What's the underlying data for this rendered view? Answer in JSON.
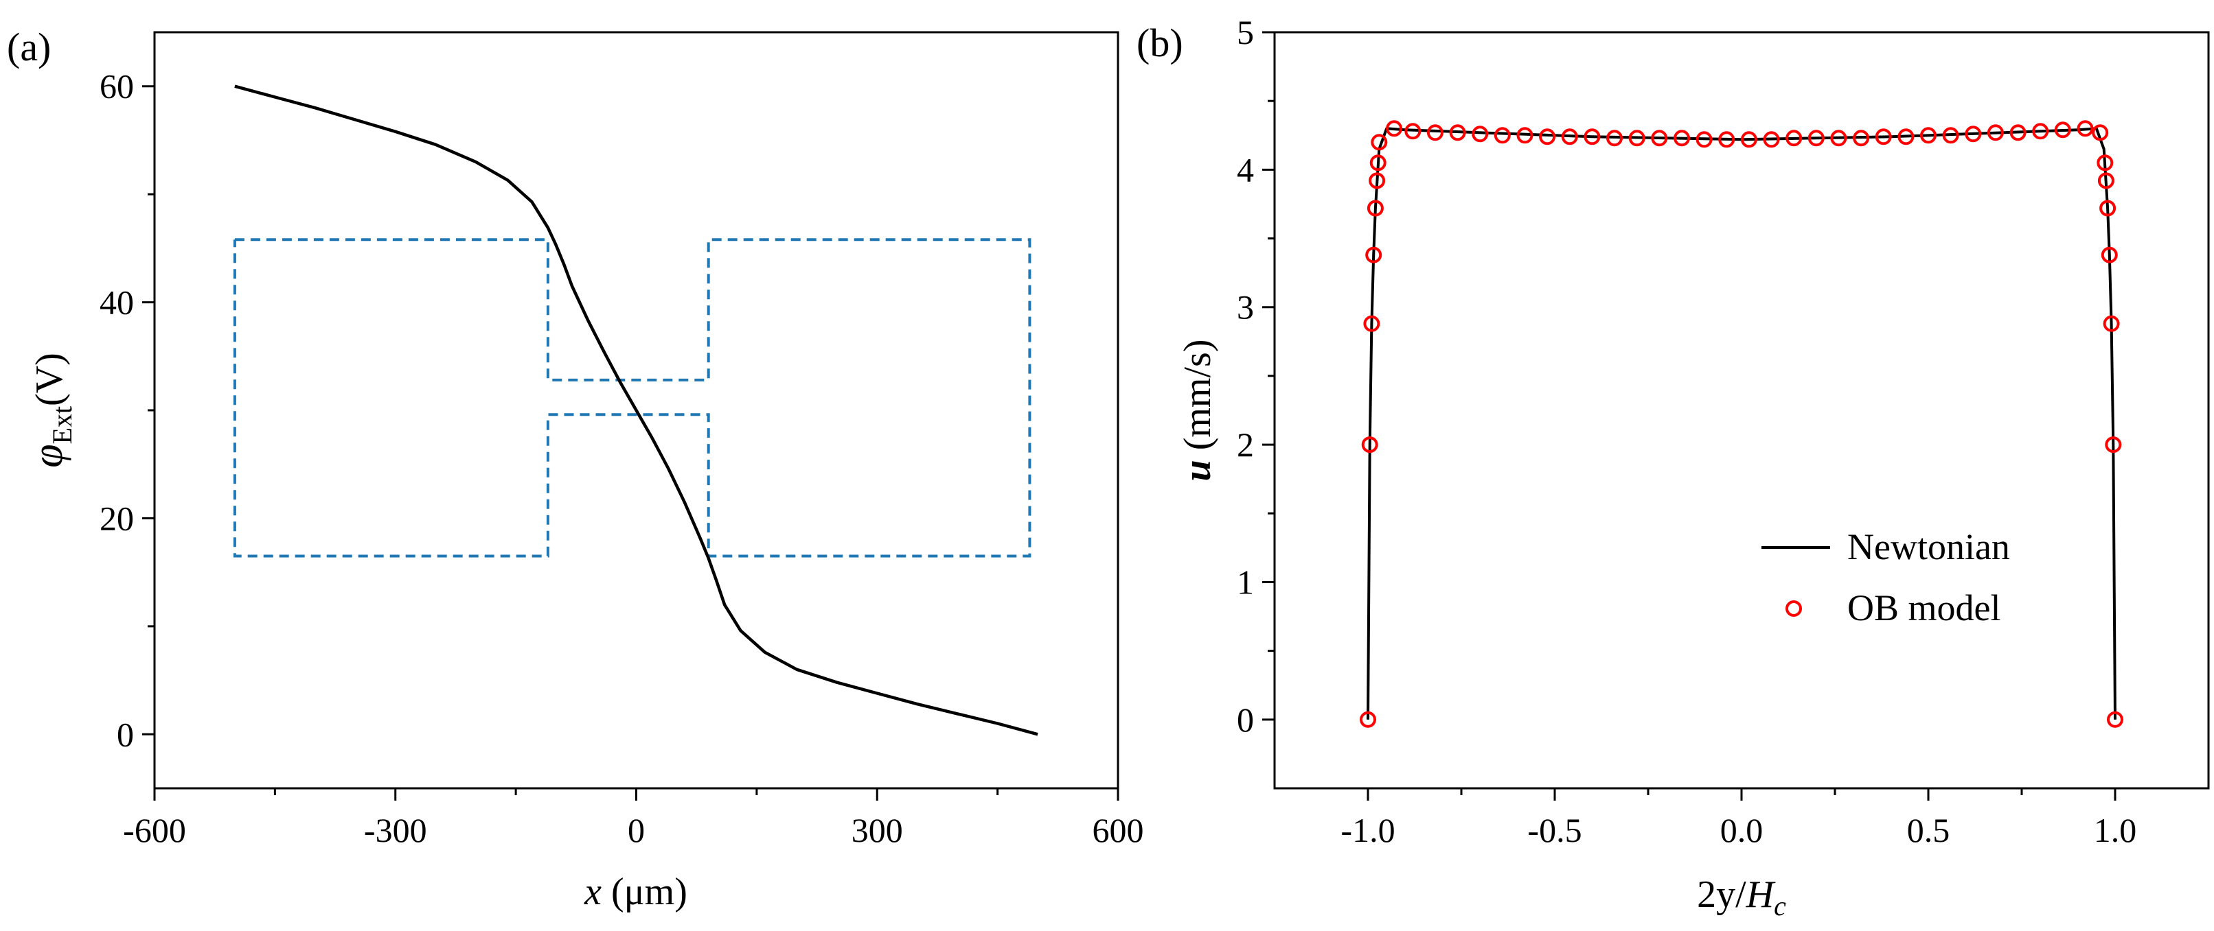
{
  "figure_labels": {
    "a": "(a)",
    "b": "(b)"
  },
  "chart_data": [
    {
      "type": "line",
      "panel": "(a)",
      "xlabel_italic": "x",
      "xlabel_rest": " (μm)",
      "ylabel_symbol": "φ",
      "ylabel_sub": "Ext",
      "ylabel_rest": "(V)",
      "xlim": [
        -600,
        600
      ],
      "ylim": [
        -5,
        65
      ],
      "xticks": [
        -600,
        -300,
        0,
        300,
        600
      ],
      "xtick_labels": [
        "-600",
        "-300",
        "0",
        "300",
        "600"
      ],
      "yticks": [
        0,
        20,
        40,
        60
      ],
      "ytick_labels": [
        "0",
        "20",
        "40",
        "60"
      ],
      "series": [
        {
          "name": "potential",
          "color": "#000000",
          "x": [
            -500,
            -450,
            -400,
            -350,
            -300,
            -250,
            -200,
            -160,
            -130,
            -110,
            -100,
            -90,
            -80,
            -60,
            -40,
            -20,
            0,
            20,
            40,
            60,
            80,
            90,
            100,
            110,
            130,
            160,
            200,
            250,
            300,
            350,
            400,
            450,
            500
          ],
          "y": [
            60.0,
            59.0,
            58.0,
            56.9,
            55.8,
            54.6,
            53.0,
            51.3,
            49.3,
            46.9,
            45.3,
            43.5,
            41.5,
            38.3,
            35.4,
            32.6,
            30.0,
            27.4,
            24.6,
            21.5,
            18.1,
            16.3,
            14.2,
            12.0,
            9.6,
            7.6,
            6.0,
            4.8,
            3.8,
            2.8,
            1.9,
            1.0,
            0.0
          ]
        }
      ],
      "outline": {
        "color": "#1f77b4",
        "x": [
          -500,
          -110,
          -110,
          90,
          90,
          490,
          490,
          90,
          90,
          -110,
          -110,
          -500,
          -500
        ],
        "y": [
          45.8,
          45.8,
          32.8,
          32.8,
          45.8,
          45.8,
          16.5,
          16.5,
          29.6,
          29.6,
          16.5,
          16.5,
          45.8
        ]
      }
    },
    {
      "type": "line+scatter",
      "panel": "(b)",
      "xlabel_rest": "2y/",
      "xlabel_italic": "H",
      "xlabel_sub": "c",
      "ylabel_italic": "u",
      "ylabel_rest": " (mm/s)",
      "xlim": [
        -1.25,
        1.25
      ],
      "ylim": [
        -0.5,
        5
      ],
      "xticks": [
        -1.0,
        -0.5,
        0.0,
        0.5,
        1.0
      ],
      "xtick_labels": [
        "-1.0",
        "-0.5",
        "0.0",
        "0.5",
        "1.0"
      ],
      "yticks": [
        0,
        1,
        2,
        3,
        4,
        5
      ],
      "ytick_labels": [
        "0",
        "1",
        "2",
        "3",
        "4",
        "5"
      ],
      "legend": {
        "position": "lower-right",
        "entries": [
          "Newtonian",
          "OB model"
        ]
      },
      "series": [
        {
          "name": "Newtonian",
          "kind": "line",
          "color": "#000000",
          "x": [
            -1.0,
            -0.995,
            -0.99,
            -0.985,
            -0.98,
            -0.97,
            -0.95,
            -0.9,
            -0.8,
            -0.6,
            -0.4,
            -0.2,
            0.0,
            0.2,
            0.4,
            0.6,
            0.8,
            0.9,
            0.95,
            0.97,
            0.98,
            0.985,
            0.99,
            0.995,
            1.0
          ],
          "y": [
            0.0,
            2.0,
            2.88,
            3.38,
            3.72,
            4.15,
            4.3,
            4.29,
            4.28,
            4.26,
            4.24,
            4.23,
            4.22,
            4.23,
            4.24,
            4.26,
            4.28,
            4.29,
            4.3,
            4.15,
            3.72,
            3.38,
            2.88,
            2.0,
            0.0
          ]
        },
        {
          "name": "OB model",
          "kind": "scatter",
          "color": "#ff0000",
          "x": [
            -1.0,
            -0.995,
            -0.99,
            -0.985,
            -0.98,
            -0.976,
            -0.973,
            -0.97,
            -0.93,
            -0.88,
            -0.82,
            -0.76,
            -0.7,
            -0.64,
            -0.58,
            -0.52,
            -0.46,
            -0.4,
            -0.34,
            -0.28,
            -0.22,
            -0.16,
            -0.1,
            -0.04,
            0.02,
            0.08,
            0.14,
            0.2,
            0.26,
            0.32,
            0.38,
            0.44,
            0.5,
            0.56,
            0.62,
            0.68,
            0.74,
            0.8,
            0.86,
            0.92,
            0.96,
            0.973,
            0.976,
            0.98,
            0.985,
            0.99,
            0.995,
            1.0
          ],
          "y": [
            0.0,
            2.0,
            2.88,
            3.38,
            3.72,
            3.92,
            4.05,
            4.2,
            4.3,
            4.28,
            4.27,
            4.27,
            4.26,
            4.25,
            4.25,
            4.24,
            4.24,
            4.24,
            4.23,
            4.23,
            4.23,
            4.23,
            4.22,
            4.22,
            4.22,
            4.22,
            4.23,
            4.23,
            4.23,
            4.23,
            4.24,
            4.24,
            4.25,
            4.25,
            4.26,
            4.27,
            4.27,
            4.28,
            4.29,
            4.3,
            4.27,
            4.05,
            3.92,
            3.72,
            3.38,
            2.88,
            2.0,
            0.0
          ]
        }
      ]
    }
  ]
}
